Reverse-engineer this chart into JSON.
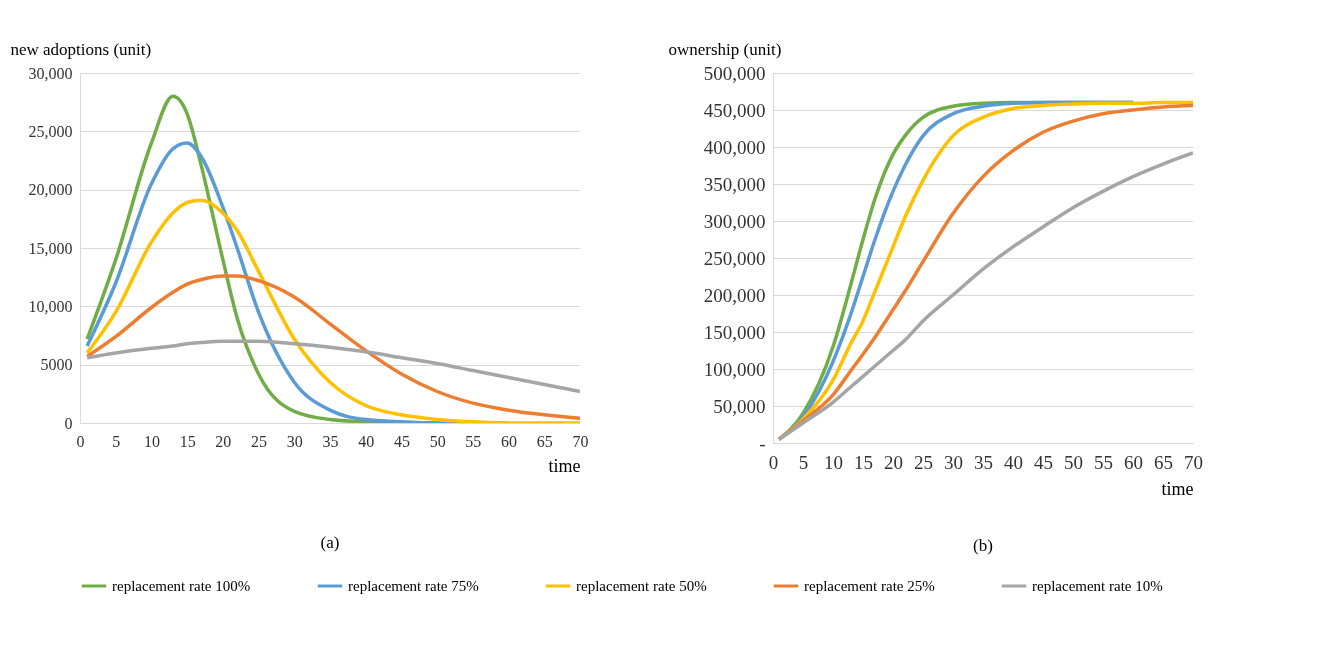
{
  "chart_data": [
    {
      "type": "line",
      "xlabel": "time",
      "ylabel": "new adoptions (unit)",
      "annotations": [
        "(a)"
      ],
      "x": [
        1,
        5,
        10,
        13,
        15,
        17,
        20,
        22,
        25,
        30,
        35,
        40,
        45,
        50,
        55,
        60,
        65,
        70
      ],
      "series": [
        {
          "name": "replacement rate 100%",
          "color": "#70ad47",
          "values": [
            7200,
            14000,
            24000,
            28000,
            26500,
            22000,
            14000,
            9000,
            4200,
            1000,
            300,
            100,
            0,
            0,
            0,
            0,
            null,
            null
          ]
        },
        {
          "name": "replacement rate 75%",
          "color": "#5b9bd5",
          "values": [
            6600,
            12000,
            20500,
            23500,
            24000,
            22800,
            18500,
            15000,
            9500,
            3500,
            1100,
            300,
            100,
            0,
            0,
            null,
            null,
            null
          ]
        },
        {
          "name": "replacement rate 50%",
          "color": "#ffc000",
          "values": [
            6000,
            9500,
            15500,
            18000,
            18900,
            19100,
            18000,
            16500,
            13000,
            7200,
            3500,
            1500,
            700,
            300,
            100,
            0,
            0,
            0
          ]
        },
        {
          "name": "replacement rate 25%",
          "color": "#ed7d31",
          "values": [
            5700,
            7400,
            9900,
            11200,
            11900,
            12300,
            12600,
            12600,
            12200,
            10800,
            8500,
            6200,
            4200,
            2700,
            1700,
            1100,
            700,
            400
          ]
        },
        {
          "name": "replacement rate 10%",
          "color": "#a5a5a5",
          "values": [
            5600,
            6000,
            6400,
            6600,
            6800,
            6900,
            7000,
            7000,
            7000,
            6800,
            6500,
            6100,
            5600,
            5100,
            4500,
            3900,
            3300,
            2700
          ]
        }
      ],
      "xlim": [
        0,
        70
      ],
      "xticks": [
        0,
        5,
        10,
        15,
        20,
        25,
        30,
        35,
        40,
        45,
        50,
        55,
        60,
        65,
        70
      ],
      "ylim": [
        0,
        30000
      ],
      "yticks": [
        0,
        5000,
        {
          "value": 10000,
          "label": "10,000"
        },
        {
          "value": 15000,
          "label": "15,000"
        },
        {
          "value": 20000,
          "label": "20,000"
        },
        {
          "value": 25000,
          "label": "25,000"
        },
        {
          "value": 30000,
          "label": "30,000"
        }
      ],
      "grid": "y",
      "legend": "bottom",
      "marker": "none",
      "line_style": "solid"
    },
    {
      "type": "line",
      "xlabel": "time",
      "ylabel": "ownership (unit)",
      "annotations": [
        "(b)"
      ],
      "x": [
        1,
        5,
        10,
        13,
        15,
        17,
        20,
        22,
        25,
        30,
        35,
        40,
        45,
        50,
        55,
        60,
        65,
        70
      ],
      "series": [
        {
          "name": "replacement rate 100%",
          "color": "#70ad47",
          "values": [
            5000,
            40000,
            130000,
            215000,
            275000,
            330000,
            390000,
            415000,
            440000,
            455000,
            459000,
            460000,
            460000,
            460000,
            460000,
            460000,
            null,
            null
          ]
        },
        {
          "name": "replacement rate 75%",
          "color": "#5b9bd5",
          "values": [
            5000,
            35000,
            110000,
            175000,
            225000,
            275000,
            340000,
            375000,
            415000,
            445000,
            455000,
            459000,
            460000,
            460000,
            460000,
            460000,
            null,
            null
          ]
        },
        {
          "name": "replacement rate 50%",
          "color": "#ffc000",
          "values": [
            5000,
            32000,
            85000,
            135000,
            165000,
            205000,
            265000,
            305000,
            355000,
            415000,
            440000,
            452000,
            456000,
            458000,
            459000,
            459000,
            460000,
            460000
          ]
        },
        {
          "name": "replacement rate 25%",
          "color": "#ed7d31",
          "values": [
            5000,
            30000,
            65000,
            98000,
            120000,
            143000,
            180000,
            205000,
            245000,
            310000,
            360000,
            395000,
            420000,
            435000,
            445000,
            450000,
            454000,
            456000
          ]
        },
        {
          "name": "replacement rate 10%",
          "color": "#a5a5a5",
          "values": [
            5000,
            27000,
            55000,
            76000,
            90000,
            104000,
            125000,
            139000,
            165000,
            200000,
            235000,
            265000,
            292000,
            318000,
            340000,
            360000,
            377000,
            392000
          ]
        }
      ],
      "xlim": [
        0,
        70
      ],
      "xticks": [
        0,
        5,
        10,
        15,
        20,
        25,
        30,
        35,
        40,
        45,
        50,
        55,
        60,
        65,
        70
      ],
      "ylim": [
        0,
        500000
      ],
      "yticks": [
        {
          "value": 0,
          "label": "-"
        },
        {
          "value": 50000,
          "label": "50,000"
        },
        {
          "value": 100000,
          "label": "100,000"
        },
        {
          "value": 150000,
          "label": "150,000"
        },
        {
          "value": 200000,
          "label": "200,000"
        },
        {
          "value": 250000,
          "label": "250,000"
        },
        {
          "value": 300000,
          "label": "300,000"
        },
        {
          "value": 350000,
          "label": "350,000"
        },
        {
          "value": 400000,
          "label": "400,000"
        },
        {
          "value": 450000,
          "label": "450,000"
        },
        {
          "value": 500000,
          "label": "500,000"
        }
      ],
      "grid": "y",
      "legend": "bottom",
      "marker": "none",
      "line_style": "solid"
    }
  ]
}
